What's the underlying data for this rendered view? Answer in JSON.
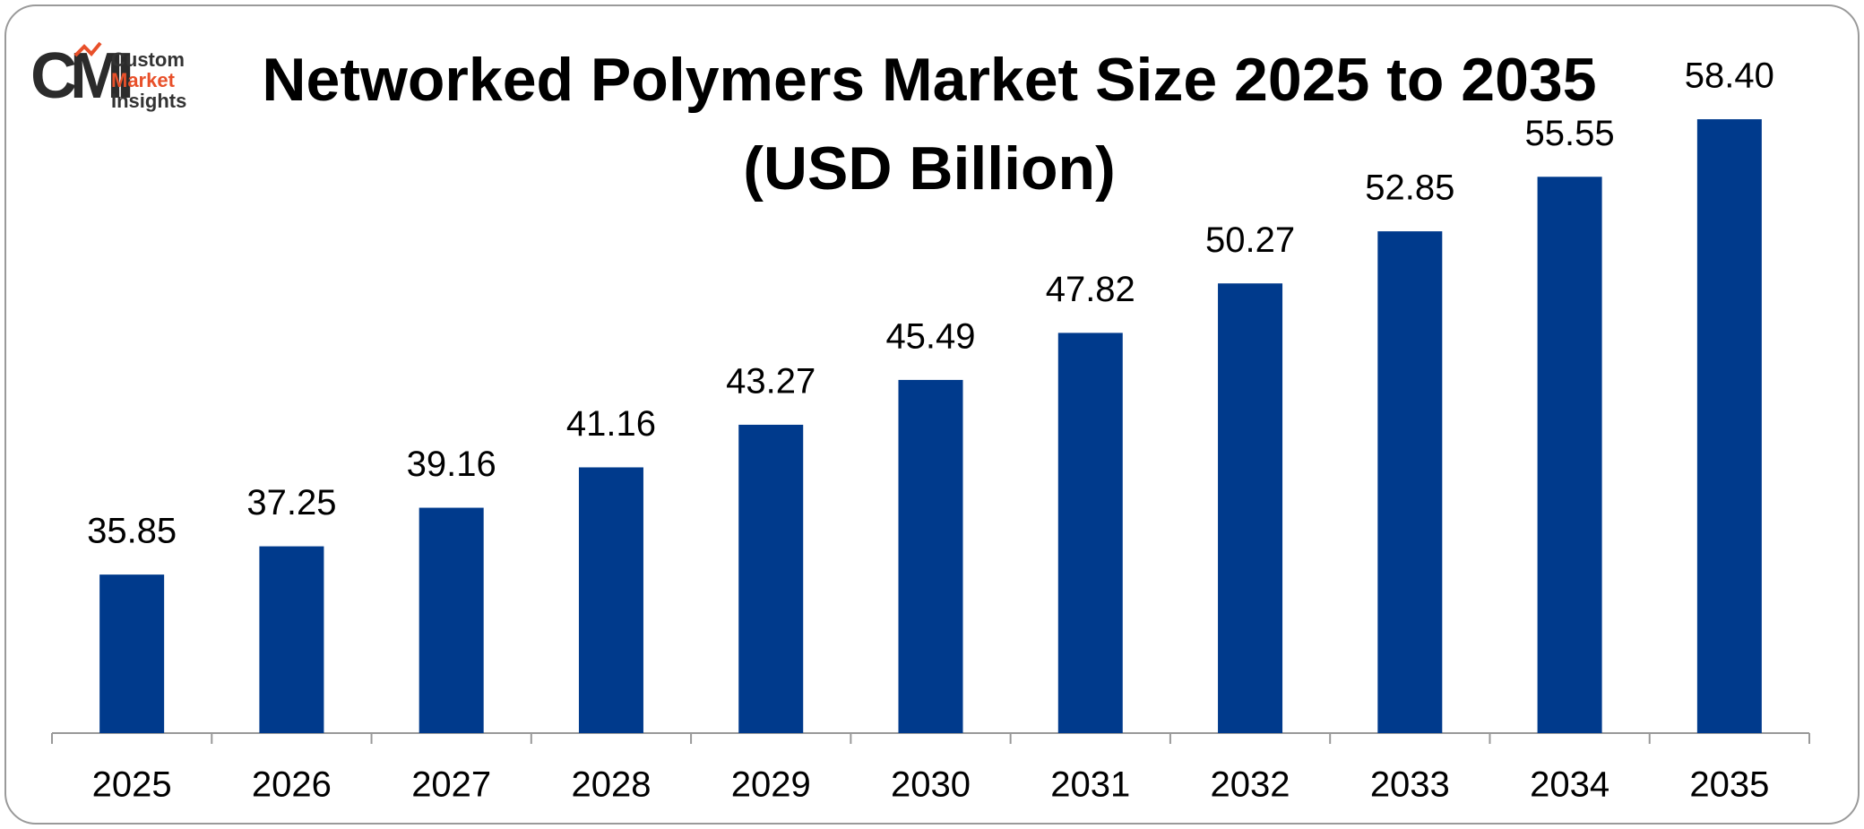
{
  "logo": {
    "mark": "CMI",
    "lines": [
      "Custom",
      "Market",
      "Insights"
    ]
  },
  "chart_data": {
    "type": "bar",
    "title": [
      "Networked Polymers Market Size 2025 to 2035",
      "(USD Billion)"
    ],
    "categories": [
      "2025",
      "2026",
      "2027",
      "2028",
      "2029",
      "2030",
      "2031",
      "2032",
      "2033",
      "2034",
      "2035"
    ],
    "values": [
      35.85,
      37.25,
      39.16,
      41.16,
      43.27,
      45.49,
      47.82,
      50.27,
      52.85,
      55.55,
      58.4
    ],
    "value_labels": [
      "35.85",
      "37.25",
      "39.16",
      "41.16",
      "43.27",
      "45.49",
      "47.82",
      "50.27",
      "52.85",
      "55.55",
      "58.40"
    ],
    "color": "#003a8c",
    "ylim": [
      28,
      60
    ]
  }
}
